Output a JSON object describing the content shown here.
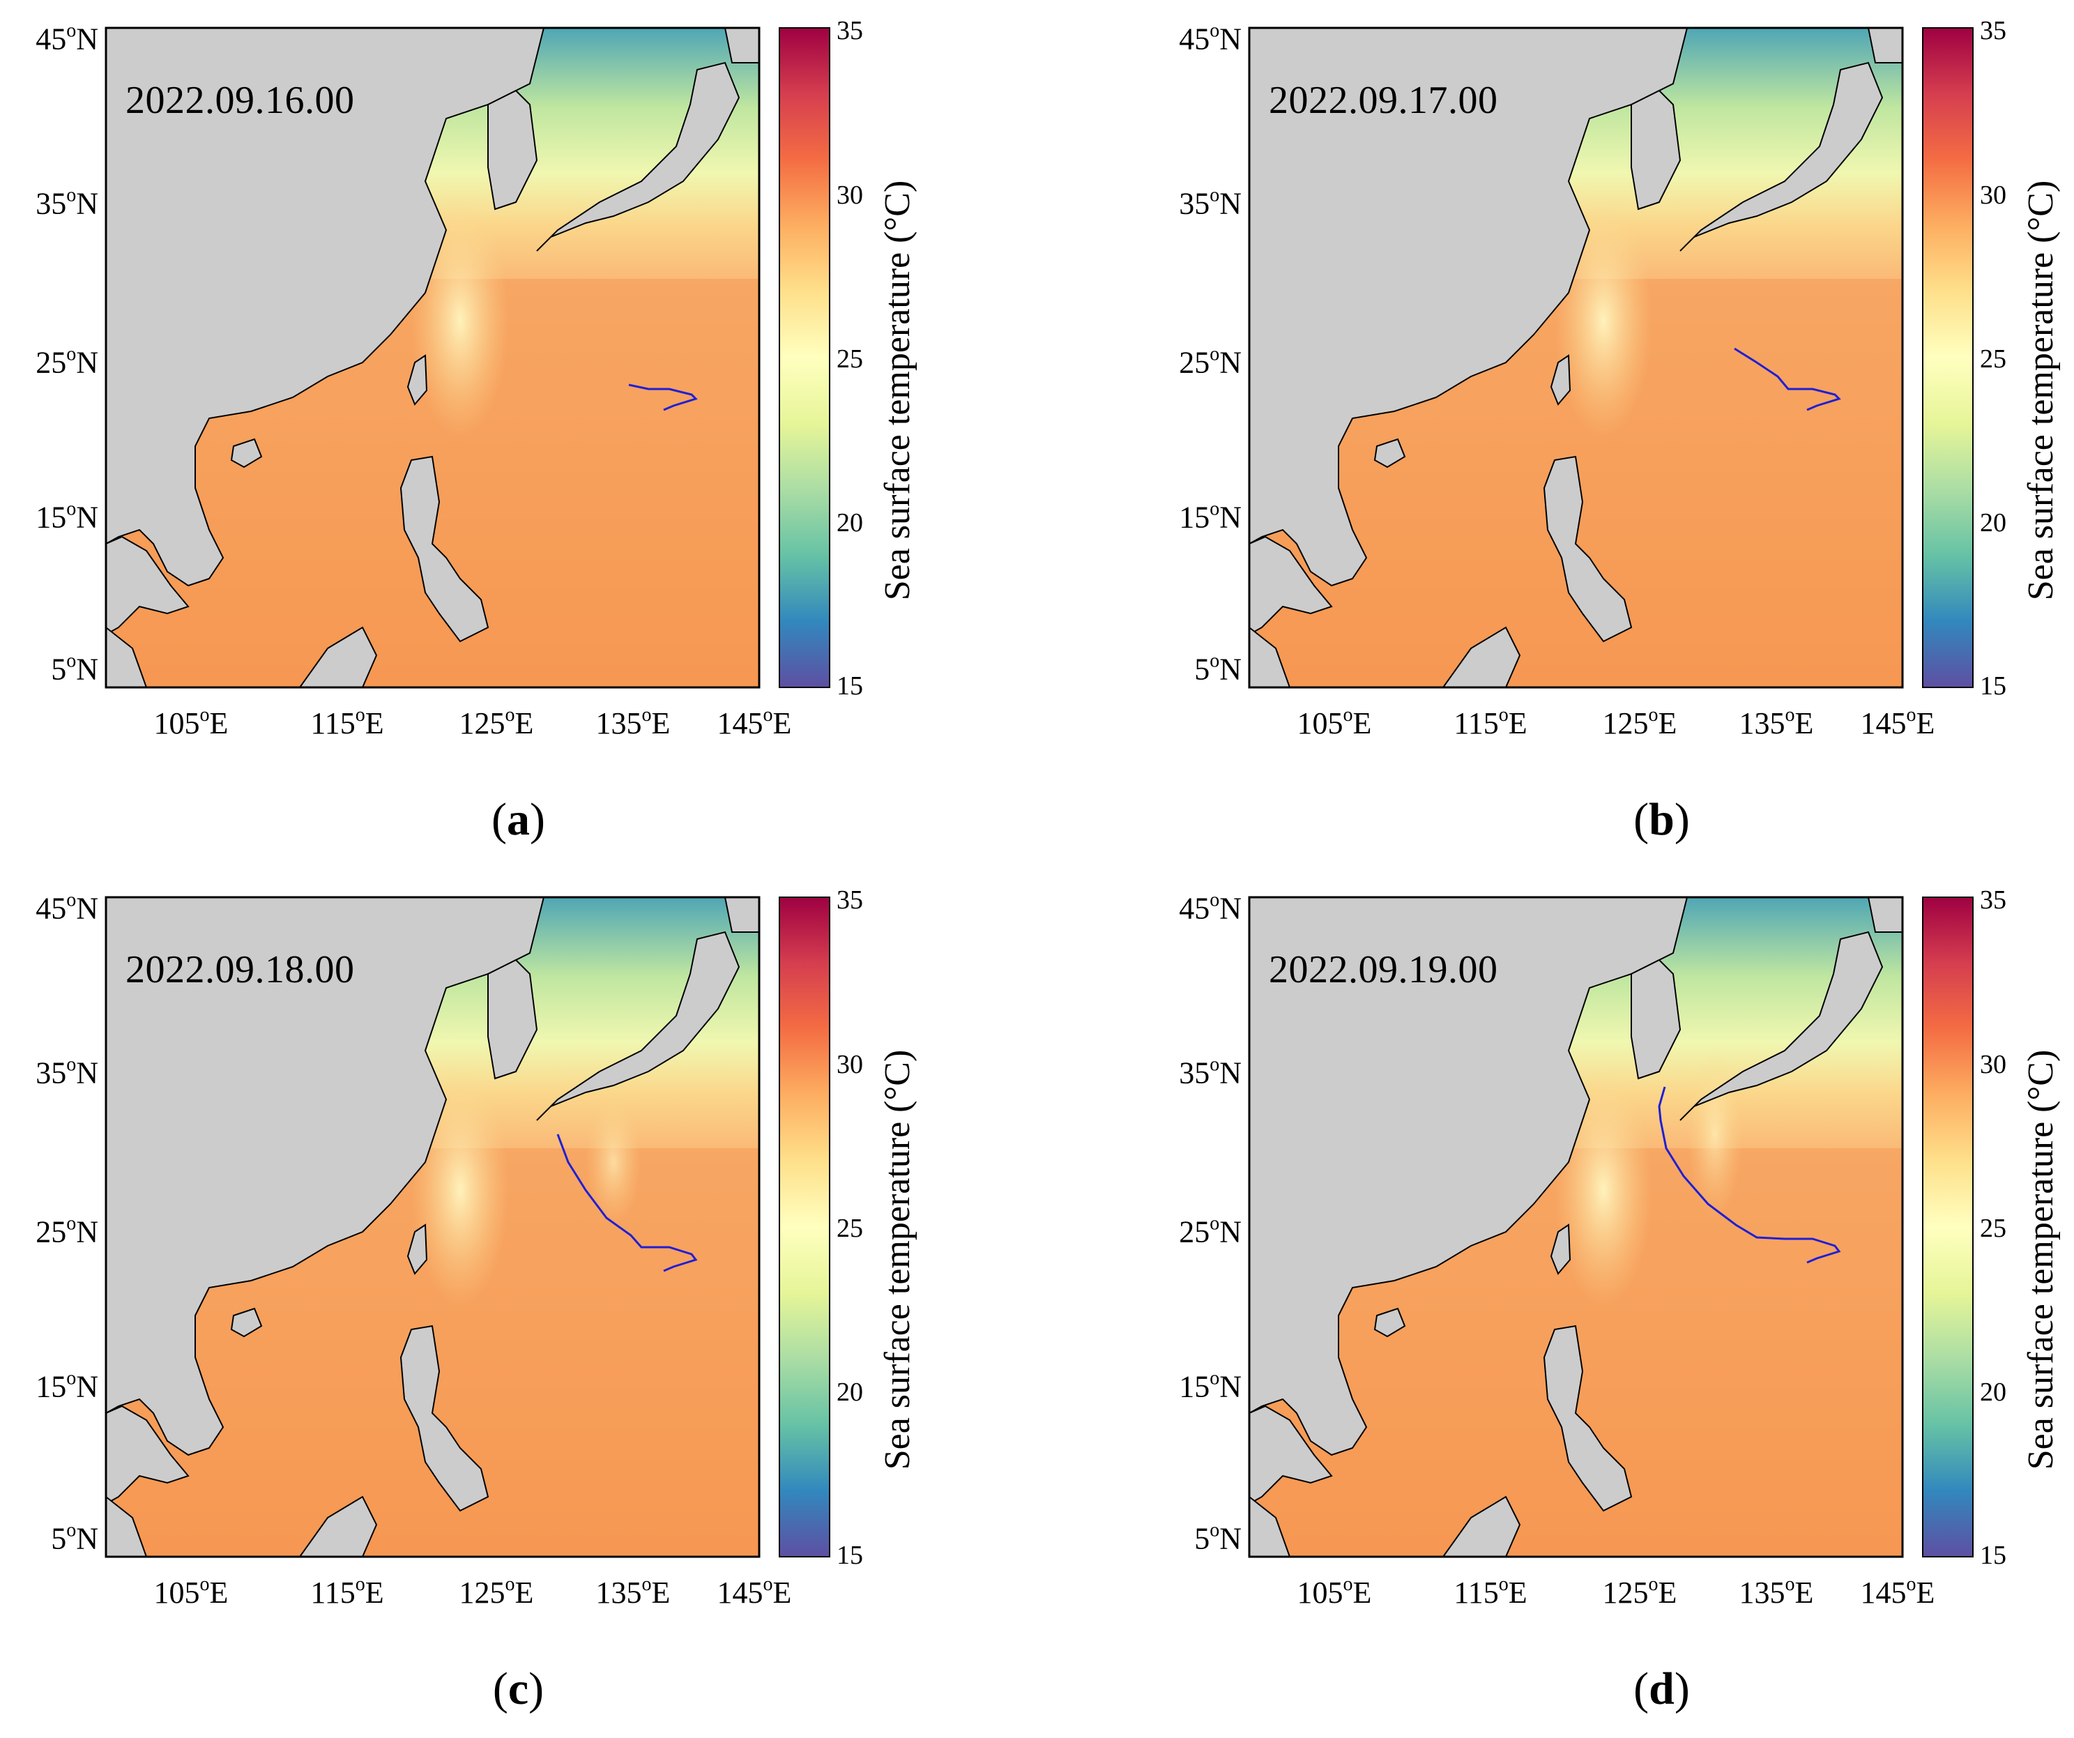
{
  "figure": {
    "colorbar": {
      "label": "Sea surface temperature (°C)",
      "ticks": [
        "35",
        "30",
        "25",
        "20",
        "15"
      ],
      "range": [
        15,
        35
      ],
      "colors": [
        "#5e4fa2",
        "#3288bd",
        "#66c2a5",
        "#abdda4",
        "#e6f598",
        "#ffffbf",
        "#fee08b",
        "#fdae61",
        "#f46d43",
        "#d53e4f",
        "#9e0142"
      ]
    },
    "axes": {
      "lat_labels": [
        {
          "value": "45",
          "hemi": "N"
        },
        {
          "value": "35",
          "hemi": "N"
        },
        {
          "value": "25",
          "hemi": "N"
        },
        {
          "value": "15",
          "hemi": "N"
        },
        {
          "value": "5",
          "hemi": "N"
        }
      ],
      "lon_labels": [
        {
          "value": "105",
          "hemi": "E"
        },
        {
          "value": "115",
          "hemi": "E"
        },
        {
          "value": "125",
          "hemi": "E"
        },
        {
          "value": "135",
          "hemi": "E"
        },
        {
          "value": "145",
          "hemi": "E"
        }
      ],
      "degree_symbol": "o"
    },
    "panels": [
      {
        "timestamp": "2022.09.16.00",
        "label_open": "(",
        "label_letter": "a",
        "label_close": ")"
      },
      {
        "timestamp": "2022.09.17.00",
        "label_open": "(",
        "label_letter": "b",
        "label_close": ")"
      },
      {
        "timestamp": "2022.09.18.00",
        "label_open": "(",
        "label_letter": "c",
        "label_close": ")"
      },
      {
        "timestamp": "2022.09.19.00",
        "label_open": "(",
        "label_letter": "d",
        "label_close": ")"
      }
    ],
    "land_color": "#cccccc",
    "track_color": "#1f1fd6"
  }
}
